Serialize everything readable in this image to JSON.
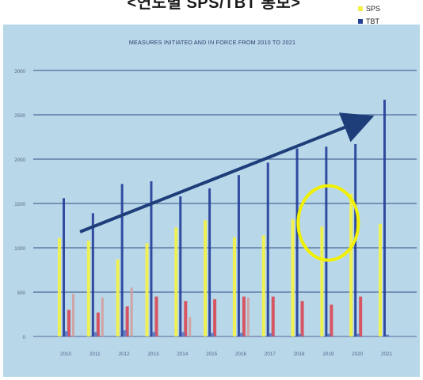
{
  "header": {
    "caption": "<연도별 SPS/TBT 통보>"
  },
  "chart_data": {
    "type": "bar",
    "title": "MEASURES INITIATED AND IN FORCE FROM 2010 TO 2021",
    "xlabel": "",
    "ylabel": "",
    "ylim": [
      0,
      3000
    ],
    "y_ticks": [
      0,
      500,
      1000,
      1500,
      2000,
      2500,
      3000
    ],
    "grid": true,
    "legend": "top-right",
    "categories": [
      "2010",
      "2011",
      "2012",
      "2013",
      "2014",
      "2015",
      "2016",
      "2017",
      "2018",
      "2019",
      "2020",
      "2021"
    ],
    "series": [
      {
        "name": "SPS",
        "color": "#f1f14a",
        "values": [
          1110,
          1080,
          870,
          1050,
          1230,
          1310,
          1120,
          1140,
          1320,
          1240,
          1610,
          1270
        ]
      },
      {
        "name": "TBT",
        "color": "#243f98",
        "values": [
          1560,
          1390,
          1720,
          1750,
          1580,
          1670,
          1820,
          1960,
          2120,
          2140,
          2170,
          2670
        ]
      },
      {
        "values": [
          300,
          270,
          340,
          450,
          400,
          420,
          450,
          450,
          400,
          360,
          450,
          0
        ],
        "color": "#d94a56"
      },
      {
        "values": [
          480,
          440,
          550,
          0,
          220,
          0,
          440,
          0,
          0,
          0,
          0,
          0
        ],
        "color": "#d1a09d"
      },
      {
        "values": [
          60,
          50,
          70,
          50,
          50,
          40,
          40,
          35,
          30,
          30,
          30,
          20
        ],
        "color": "#5f77c0"
      }
    ],
    "annotations": [
      {
        "type": "trend-arrow",
        "color": "#1e3e7a",
        "from": {
          "category": "2010",
          "value": 1180
        },
        "to": {
          "category": "2020",
          "value": 2450
        }
      },
      {
        "type": "circle",
        "color": "#f0f000",
        "center": {
          "category": "2019",
          "value": 1280
        }
      }
    ]
  }
}
